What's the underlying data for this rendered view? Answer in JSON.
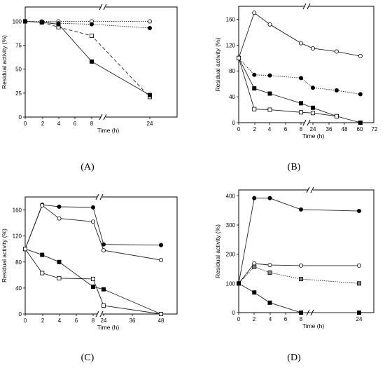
{
  "chart_data": [
    {
      "type": "line",
      "panel_label": "(A)",
      "xlabel": "Time (h)",
      "ylabel": "Residual activity (%)",
      "x_ticks": [
        "0",
        "2",
        "4",
        "6",
        "8",
        "24"
      ],
      "y_ticks": [
        "0",
        "25",
        "50",
        "75",
        "100"
      ],
      "ylim": [
        0,
        115
      ],
      "axis_break": "between 8 and 24",
      "grid": false,
      "series": [
        {
          "marker": "open-circle",
          "style": "dotted",
          "x": [
            0,
            2,
            4,
            8,
            24
          ],
          "y": [
            100,
            100,
            100,
            100,
            100
          ]
        },
        {
          "marker": "filled-circle",
          "style": "dotted",
          "x": [
            0,
            2,
            4,
            8,
            24
          ],
          "y": [
            100,
            99,
            98,
            97,
            93
          ]
        },
        {
          "marker": "open-square",
          "style": "dashed",
          "x": [
            0,
            2,
            4,
            8,
            24
          ],
          "y": [
            100,
            99,
            94,
            85,
            21
          ]
        },
        {
          "marker": "filled-square",
          "style": "solid",
          "x": [
            0,
            2,
            4,
            8,
            24
          ],
          "y": [
            100,
            99,
            97,
            58,
            23
          ]
        }
      ]
    },
    {
      "type": "line",
      "panel_label": "(B)",
      "xlabel": "Time (h)",
      "ylabel": "Residual activity (%)",
      "x_ticks": [
        "0",
        "2",
        "4",
        "6",
        "8",
        "24",
        "36",
        "48",
        "60",
        "72"
      ],
      "y_ticks": [
        "0",
        "40",
        "80",
        "120",
        "160"
      ],
      "ylim": [
        0,
        180
      ],
      "axis_break": "between 8 and 24",
      "grid": false,
      "series": [
        {
          "marker": "open-circle",
          "style": "solid",
          "x": [
            0,
            2,
            4,
            8,
            24,
            48,
            72
          ],
          "y": [
            100,
            170,
            152,
            123,
            115,
            110,
            103
          ]
        },
        {
          "marker": "filled-circle",
          "style": "dotted",
          "x": [
            0,
            2,
            4,
            8,
            24,
            48,
            72
          ],
          "y": [
            100,
            74,
            73,
            69,
            54,
            50,
            44
          ]
        },
        {
          "marker": "filled-square",
          "style": "solid",
          "x": [
            0,
            2,
            4,
            8,
            24,
            48,
            72
          ],
          "y": [
            100,
            53,
            45,
            30,
            23,
            10,
            0
          ]
        },
        {
          "marker": "open-square",
          "style": "solid",
          "x": [
            0,
            2,
            4,
            8,
            24,
            48
          ],
          "y": [
            100,
            21,
            20,
            16,
            15,
            10
          ]
        }
      ]
    },
    {
      "type": "line",
      "panel_label": "(C)",
      "xlabel": "Time (h)",
      "ylabel": "Residual activity (%)",
      "x_ticks": [
        "0",
        "2",
        "4",
        "6",
        "8",
        "24",
        "36",
        "48"
      ],
      "y_ticks": [
        "0",
        "40",
        "80",
        "120",
        "160"
      ],
      "ylim": [
        0,
        180
      ],
      "axis_break": "between 8 and 24",
      "grid": false,
      "series": [
        {
          "marker": "filled-circle",
          "style": "solid",
          "x": [
            0,
            2,
            4,
            8,
            24,
            48
          ],
          "y": [
            100,
            168,
            165,
            164,
            107,
            106
          ]
        },
        {
          "marker": "open-circle",
          "style": "solid",
          "x": [
            0,
            2,
            4,
            8,
            24,
            48
          ],
          "y": [
            100,
            167,
            147,
            142,
            98,
            83
          ]
        },
        {
          "marker": "filled-square",
          "style": "solid",
          "x": [
            0,
            2,
            4,
            8,
            24,
            48
          ],
          "y": [
            100,
            91,
            80,
            42,
            38,
            0
          ]
        },
        {
          "marker": "open-square",
          "style": "solid",
          "x": [
            0,
            2,
            4,
            8,
            24,
            48
          ],
          "y": [
            100,
            63,
            55,
            54,
            13,
            0
          ]
        }
      ]
    },
    {
      "type": "line",
      "panel_label": "(D)",
      "xlabel": "Time (h)",
      "ylabel": "Residual activity (%)",
      "x_ticks": [
        "0",
        "2",
        "4",
        "6",
        "8",
        "24"
      ],
      "y_ticks": [
        "0",
        "100",
        "200",
        "300",
        "400"
      ],
      "ylim": [
        0,
        420
      ],
      "axis_break": "between 8 and 24",
      "grid": false,
      "series": [
        {
          "marker": "filled-circle",
          "style": "solid",
          "x": [
            0,
            2,
            4,
            8,
            24
          ],
          "y": [
            100,
            392,
            392,
            353,
            348
          ]
        },
        {
          "marker": "open-circle",
          "style": "solid",
          "x": [
            0,
            2,
            4,
            8,
            24
          ],
          "y": [
            100,
            168,
            163,
            161,
            161
          ]
        },
        {
          "marker": "grey-square",
          "style": "dotted",
          "x": [
            0,
            2,
            4,
            8,
            24
          ],
          "y": [
            100,
            157,
            137,
            115,
            100
          ]
        },
        {
          "marker": "filled-square",
          "style": "solid",
          "x": [
            0,
            2,
            4,
            8,
            24
          ],
          "y": [
            100,
            69,
            34,
            0,
            0
          ]
        }
      ]
    }
  ]
}
